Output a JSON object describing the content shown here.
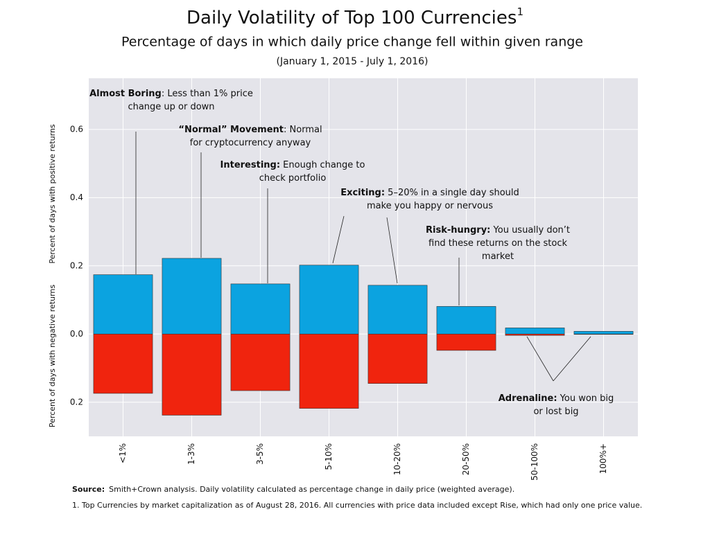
{
  "chart_data": {
    "type": "diverging_bar",
    "title": "Daily Volatility of Top 100 Currencies",
    "title_note": "1",
    "subtitle": "Percentage of days in which daily price change fell within given range",
    "date_range": "(January 1, 2015 - July 1, 2016)",
    "y_label_positive": "Percent of days with positive returns",
    "y_label_negative": "Percent of days with negative returns",
    "categories": [
      "<1%",
      "1-3%",
      "3-5%",
      "5-10%",
      "10-20%",
      "20-50%",
      "50-100%",
      "100%+"
    ],
    "series": [
      {
        "color": "#0ba3e0",
        "values": [
          0.174,
          0.222,
          0.147,
          0.202,
          0.143,
          0.081,
          0.018,
          0.008
        ]
      },
      {
        "color": "#f0240e",
        "values": [
          -0.174,
          -0.238,
          -0.166,
          -0.218,
          -0.145,
          -0.048,
          -0.004,
          -0.001
        ]
      }
    ],
    "ylim": [
      -0.3,
      0.75
    ],
    "yticks": [
      0.6,
      0.4,
      0.2,
      {
        "value": 0,
        "label": "0.0"
      },
      {
        "value": -0.2,
        "label": "0.2"
      }
    ],
    "grid": true,
    "annotations": [
      {
        "bold": "Almost Boring",
        "lines": [
          ": Less than 1% price",
          "change up or down"
        ]
      },
      {
        "bold": "“Normal” Movement",
        "lines": [
          ": Normal",
          "for cryptocurrency anyway"
        ]
      },
      {
        "bold": "Interesting:",
        "lines": [
          " Enough change to",
          "check portfolio"
        ]
      },
      {
        "bold": "Exciting:",
        "lines": [
          " 5–20% in a single day should",
          "make you happy or nervous"
        ]
      },
      {
        "bold": "Risk-hungry:",
        "lines": [
          " You usually don’t",
          "find these returns on the stock",
          "market"
        ]
      },
      {
        "bold": "Adrenaline:",
        "lines": [
          " You won big",
          "or lost big"
        ]
      }
    ],
    "source_label": "Source:",
    "source": "Smith+Crown analysis. Daily volatility calculated as percentage change in daily price (weighted average).",
    "footnote": "1. Top Currencies by market capitalization as of August 28, 2016. All currencies with price data included except Rise, which had only one price value."
  }
}
